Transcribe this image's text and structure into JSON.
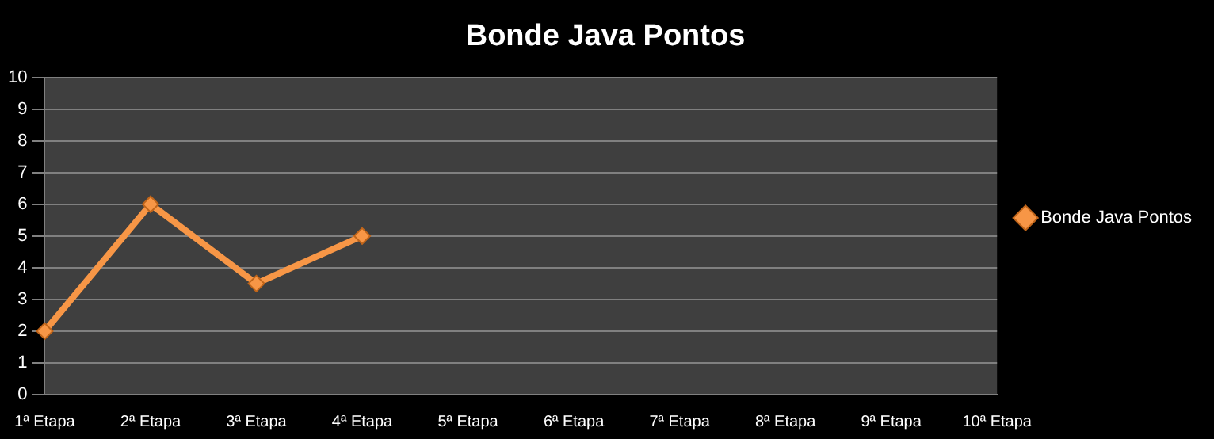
{
  "chart_data": {
    "type": "line",
    "title": "Bonde Java Pontos",
    "categories": [
      "1ª Etapa",
      "2ª Etapa",
      "3ª Etapa",
      "4ª Etapa",
      "5ª Etapa",
      "6ª Etapa",
      "7ª Etapa",
      "8ª Etapa",
      "9ª Etapa",
      "10ª Etapa"
    ],
    "series": [
      {
        "name": "Bonde Java Pontos",
        "color": "#f79646",
        "values": [
          2,
          6,
          3.5,
          5,
          null,
          null,
          null,
          null,
          null,
          null
        ]
      }
    ],
    "ylim": [
      0,
      10
    ],
    "yticks": [
      0,
      1,
      2,
      3,
      4,
      5,
      6,
      7,
      8,
      9,
      10
    ],
    "grid": "y",
    "legend": "right",
    "marker": "diamond",
    "line_style": "solid"
  }
}
